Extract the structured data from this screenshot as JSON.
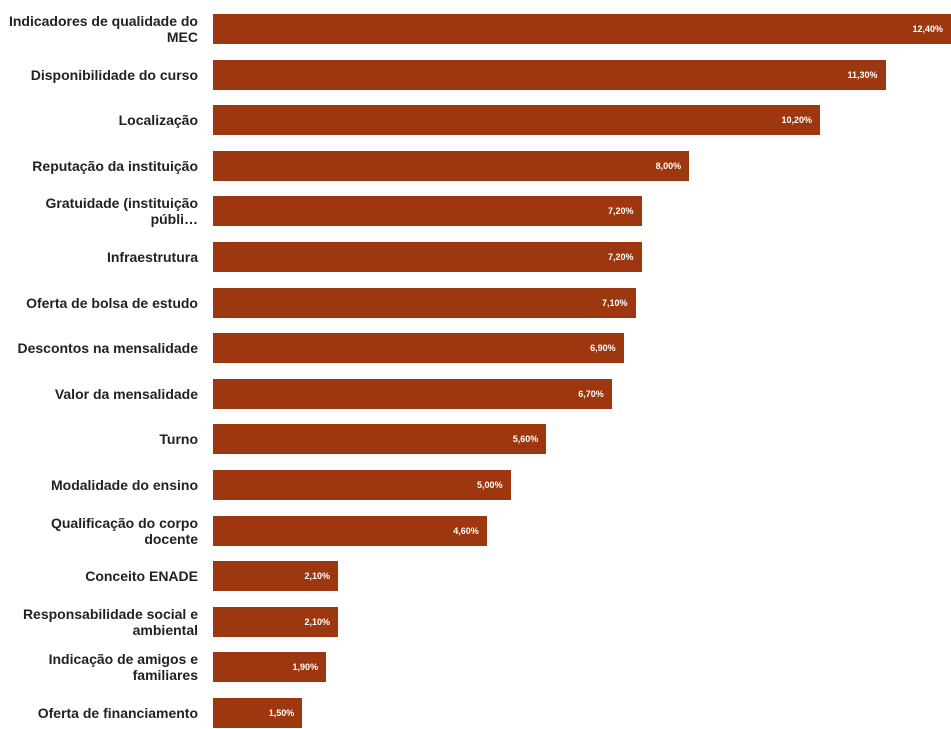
{
  "chart_data": {
    "type": "barh",
    "categories": [
      "Indicadores de qualidade do MEC",
      "Disponibilidade do curso",
      "Localização",
      "Reputação da instituição",
      "Gratuidade (instituição públi…",
      "Infraestrutura",
      "Oferta de bolsa de estudo",
      "Descontos na mensalidade",
      "Valor da mensalidade",
      "Turno",
      "Modalidade do ensino",
      "Qualificação do corpo docente",
      "Conceito ENADE",
      "Responsabilidade social e ambiental",
      "Indicação de amigos e familiares",
      "Oferta de financiamento"
    ],
    "values": [
      12.4,
      11.3,
      10.2,
      8.0,
      7.2,
      7.2,
      7.1,
      6.9,
      6.7,
      5.6,
      5.0,
      4.6,
      2.1,
      2.1,
      1.9,
      1.5
    ],
    "value_labels": [
      "12,40%",
      "11,30%",
      "10,20%",
      "8,00%",
      "7,20%",
      "7,20%",
      "7,10%",
      "6,90%",
      "6,70%",
      "5,60%",
      "5,00%",
      "4,60%",
      "2,10%",
      "2,10%",
      "1,90%",
      "1,50%"
    ],
    "color": "#9c3710",
    "xlim": [
      0,
      12.4
    ]
  }
}
